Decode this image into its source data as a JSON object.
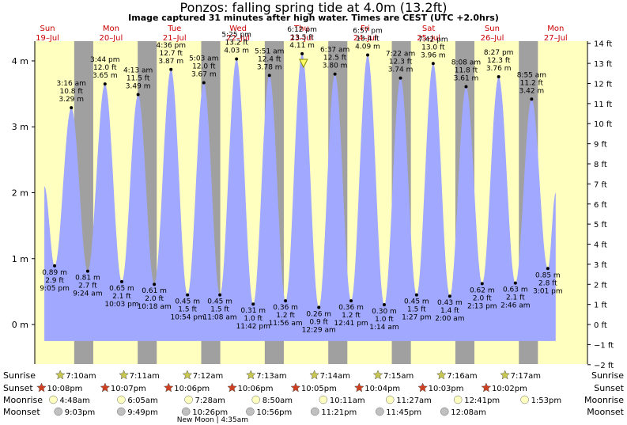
{
  "title": "Ponzos: falling  spring tide at 4.0m (13.2ft)",
  "subtitle": "Image captured 31 minutes after high water. Times are CEST (UTC +2.0hrs)",
  "colors": {
    "day": "#ffffc0",
    "night": "#a0a0a0",
    "tide": "#a0a8ff",
    "day_label": "#cc0000",
    "sunrise": "#c8c850",
    "sunset": "#d04020",
    "moonrise": "#ffffc0",
    "moonset": "#c0c0c0"
  },
  "chart_data": {
    "type": "area",
    "xlim": [
      -0.2,
      8.5
    ],
    "ylim": [
      -0.6,
      4.3
    ],
    "ylim_ft": [
      -2,
      14
    ],
    "y_ticks_m": [
      "0 m",
      "1 m",
      "2 m",
      "3 m",
      "4 m"
    ],
    "y_ticks_ft": [
      "−2 ft",
      "−1 ft",
      "0 ft",
      "1 ft",
      "2 ft",
      "3 ft",
      "4 ft",
      "5 ft",
      "6 ft",
      "7 ft",
      "8 ft",
      "9 ft",
      "10 ft",
      "11 ft",
      "12 ft",
      "13 ft",
      "14 ft"
    ],
    "days": [
      {
        "name": "Sun",
        "date": "19–Jul"
      },
      {
        "name": "Mon",
        "date": "20–Jul"
      },
      {
        "name": "Tue",
        "date": "21–Jul"
      },
      {
        "name": "Wed",
        "date": "22–Jul"
      },
      {
        "name": "Thu",
        "date": "23–Jul"
      },
      {
        "name": "Fri",
        "date": "24–Jul"
      },
      {
        "name": "Sat",
        "date": "25–Jul"
      },
      {
        "name": "Sun",
        "date": "26–Jul"
      },
      {
        "name": "Mon",
        "date": "27–Jul"
      }
    ],
    "tides": [
      {
        "t": -0.05,
        "h": 2.1
      },
      {
        "t": 0.112,
        "h": 0.89,
        "type": "low",
        "time": "9:05 pm",
        "ft": "2.9 ft",
        "m": "0.89 m"
      },
      {
        "t": 0.375,
        "h": 3.29,
        "type": "high",
        "time": "3:16 am",
        "ft": "10.8 ft",
        "m": "3.29 m"
      },
      {
        "t": 0.633,
        "h": 0.81,
        "type": "low",
        "time": "9:24 am",
        "ft": "2.7 ft",
        "m": "0.81 m"
      },
      {
        "t": 0.905,
        "h": 3.65,
        "type": "high",
        "time": "3:44 pm",
        "ft": "12.0 ft",
        "m": "3.65 m"
      },
      {
        "t": 1.169,
        "h": 0.65,
        "type": "low",
        "time": "10:03 pm",
        "ft": "2.1 ft",
        "m": "0.65 m"
      },
      {
        "t": 1.426,
        "h": 3.49,
        "type": "high",
        "time": "4:13 am",
        "ft": "11.5 ft",
        "m": "3.49 m"
      },
      {
        "t": 1.681,
        "h": 0.61,
        "type": "low",
        "time": "10:18 am",
        "ft": "2.0 ft",
        "m": "0.61 m"
      },
      {
        "t": 1.944,
        "h": 3.87,
        "type": "high",
        "time": "4:36 pm",
        "ft": "12.7 ft",
        "m": "3.87 m"
      },
      {
        "t": 2.204,
        "h": 0.45,
        "type": "low",
        "time": "10:54 pm",
        "ft": "1.5 ft",
        "m": "0.45 m"
      },
      {
        "t": 2.461,
        "h": 3.67,
        "type": "high",
        "time": "5:03 am",
        "ft": "12.0 ft",
        "m": "3.67 m"
      },
      {
        "t": 2.714,
        "h": 0.45,
        "type": "low",
        "time": "11:08 am",
        "ft": "1.5 ft",
        "m": "0.45 m"
      },
      {
        "t": 2.976,
        "h": 4.03,
        "type": "high",
        "time": "5:25 pm",
        "ft": "13.2 ft",
        "m": "4.03 m"
      },
      {
        "t": 3.238,
        "h": 0.31,
        "type": "low",
        "time": "11:42 pm",
        "ft": "1.0 ft",
        "m": "0.31 m"
      },
      {
        "t": 3.493,
        "h": 3.78,
        "type": "high",
        "time": "5:51 am",
        "ft": "12.4 ft",
        "m": "3.78 m"
      },
      {
        "t": 3.747,
        "h": 0.36,
        "type": "low",
        "time": "11:56 am",
        "ft": "1.2 ft",
        "m": "0.36 m"
      },
      {
        "t": 4.008,
        "h": 4.11,
        "type": "high",
        "time": "6:12 pm",
        "ft": "13.5 ft",
        "m": "4.11 m"
      },
      {
        "t": 4.271,
        "h": 0.26,
        "type": "low",
        "time": "12:29 am",
        "ft": "0.9 ft",
        "m": "0.26 m"
      },
      {
        "t": 4.525,
        "h": 3.8,
        "type": "high",
        "time": "6:37 am",
        "ft": "12.5 ft",
        "m": "3.80 m"
      },
      {
        "t": 4.779,
        "h": 0.36,
        "type": "low",
        "time": "12:41 pm",
        "ft": "1.2 ft",
        "m": "0.36 m"
      },
      {
        "t": 5.04,
        "h": 4.09,
        "type": "high",
        "time": "6:57 pm",
        "ft": "13.4 ft",
        "m": "4.09 m"
      },
      {
        "t": 5.301,
        "h": 0.3,
        "type": "low",
        "time": "1:14 am",
        "ft": "1.0 ft",
        "m": "0.30 m"
      },
      {
        "t": 5.557,
        "h": 3.74,
        "type": "high",
        "time": "7:22 am",
        "ft": "12.3 ft",
        "m": "3.74 m"
      },
      {
        "t": 5.81,
        "h": 0.45,
        "type": "low",
        "time": "1:27 pm",
        "ft": "1.5 ft",
        "m": "0.45 m"
      },
      {
        "t": 6.071,
        "h": 3.96,
        "type": "high",
        "time": "7:42 pm",
        "ft": "13.0 ft",
        "m": "3.96 m"
      },
      {
        "t": 6.333,
        "h": 0.43,
        "type": "low",
        "time": "2:00 am",
        "ft": "1.4 ft",
        "m": "0.43 m"
      },
      {
        "t": 6.589,
        "h": 3.61,
        "type": "high",
        "time": "8:08 am",
        "ft": "11.8 ft",
        "m": "3.61 m"
      },
      {
        "t": 6.842,
        "h": 0.62,
        "type": "low",
        "time": "2:13 pm",
        "ft": "2.0 ft",
        "m": "0.62 m"
      },
      {
        "t": 7.102,
        "h": 3.76,
        "type": "high",
        "time": "8:27 pm",
        "ft": "12.3 ft",
        "m": "3.76 m"
      },
      {
        "t": 7.365,
        "h": 0.63,
        "type": "low",
        "time": "2:46 am",
        "ft": "2.1 ft",
        "m": "0.63 m"
      },
      {
        "t": 7.621,
        "h": 3.42,
        "type": "high",
        "time": "8:55 am",
        "ft": "11.2 ft",
        "m": "3.42 m"
      },
      {
        "t": 7.876,
        "h": 0.85,
        "type": "low",
        "time": "3:01 pm",
        "ft": "2.8 ft",
        "m": "0.85 m"
      },
      {
        "t": 8.0,
        "h": 2.0
      }
    ],
    "nights": [
      [
        0.42,
        0.3
      ],
      [
        1.42,
        0.3
      ],
      [
        2.42,
        0.3
      ],
      [
        3.42,
        0.3
      ],
      [
        4.42,
        0.3
      ],
      [
        5.42,
        0.3
      ],
      [
        6.42,
        0.3
      ],
      [
        7.42,
        0.3
      ]
    ],
    "current_marker": {
      "t": 4.03,
      "h": 4.0
    }
  },
  "almanac": {
    "row_labels": [
      "Sunrise",
      "Sunset",
      "Moonrise",
      "Moonset"
    ],
    "sunrise": [
      {
        "t": 0.5,
        "label": "7:10am"
      },
      {
        "t": 1.5,
        "label": "7:11am"
      },
      {
        "t": 2.5,
        "label": "7:12am"
      },
      {
        "t": 3.5,
        "label": "7:13am"
      },
      {
        "t": 4.5,
        "label": "7:14am"
      },
      {
        "t": 5.5,
        "label": "7:15am"
      },
      {
        "t": 6.5,
        "label": "7:16am"
      },
      {
        "t": 7.5,
        "label": "7:17am"
      }
    ],
    "sunset": [
      {
        "t": 0.18,
        "label": "10:08pm"
      },
      {
        "t": 1.18,
        "label": "10:07pm"
      },
      {
        "t": 2.18,
        "label": "10:06pm"
      },
      {
        "t": 3.18,
        "label": "10:06pm"
      },
      {
        "t": 4.18,
        "label": "10:05pm"
      },
      {
        "t": 5.18,
        "label": "10:04pm"
      },
      {
        "t": 6.18,
        "label": "10:03pm"
      },
      {
        "t": 7.18,
        "label": "10:02pm"
      }
    ],
    "moonrise": [
      {
        "t": 0.44,
        "label": "4:48am"
      },
      {
        "t": 1.51,
        "label": "6:05am"
      },
      {
        "t": 2.57,
        "label": "7:28am"
      },
      {
        "t": 3.63,
        "label": "8:50am"
      },
      {
        "t": 4.69,
        "label": "10:11am"
      },
      {
        "t": 5.74,
        "label": "11:27am"
      },
      {
        "t": 6.81,
        "label": "12:41pm"
      },
      {
        "t": 7.86,
        "label": "1:53pm"
      }
    ],
    "moonset": [
      {
        "t": 0.17,
        "label": "9:03pm"
      },
      {
        "t": 1.16,
        "label": "9:49pm"
      },
      {
        "t": 2.18,
        "label": "10:26pm"
      },
      {
        "t": 3.19,
        "label": "10:56pm"
      },
      {
        "t": 4.21,
        "label": "11:21pm"
      },
      {
        "t": 5.23,
        "label": "11:45pm"
      },
      {
        "t": 6.25,
        "label": "12:08am"
      }
    ],
    "new_moon": "New Moon | 4:35am"
  }
}
